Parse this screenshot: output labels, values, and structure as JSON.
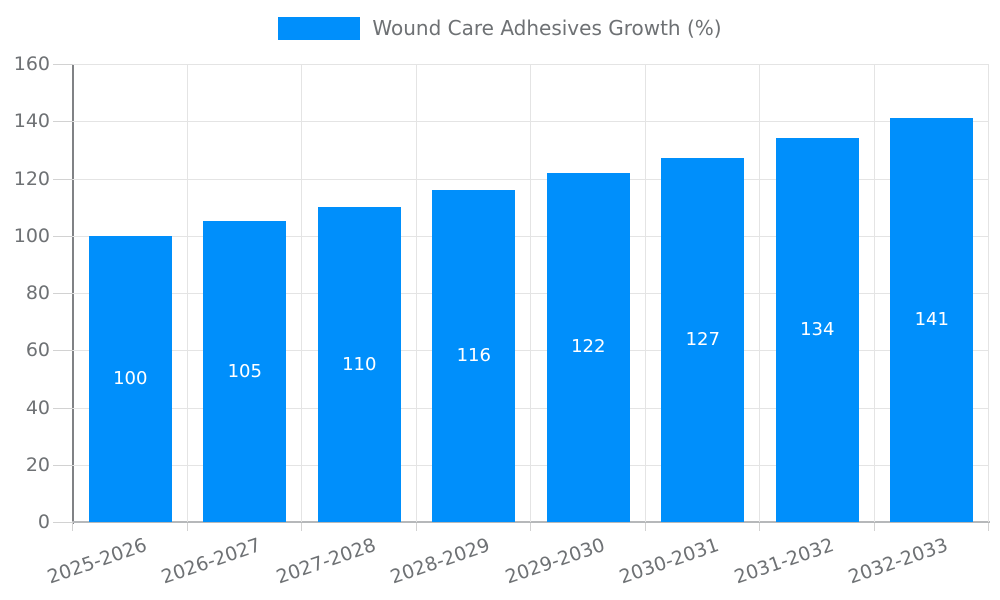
{
  "chart_data": {
    "type": "bar",
    "title": "",
    "legend": {
      "label": "Wound Care Adhesives Growth (%)",
      "position": "top"
    },
    "categories": [
      "2025-2026",
      "2026-2027",
      "2027-2028",
      "2028-2029",
      "2029-2030",
      "2030-2031",
      "2031-2032",
      "2032-2033"
    ],
    "series": [
      {
        "name": "Wound Care Adhesives Growth (%)",
        "values": [
          100,
          105,
          110,
          116,
          122,
          127,
          134,
          141
        ]
      }
    ],
    "value_labels": [
      "100",
      "105",
      "110",
      "116",
      "122",
      "127",
      "134",
      "141"
    ],
    "ylim": [
      0,
      160
    ],
    "ytick_step": 20,
    "ytick_labels": [
      "0",
      "20",
      "40",
      "60",
      "80",
      "100",
      "120",
      "140",
      "160"
    ],
    "grid": true,
    "colors": {
      "bar": "#008FFB",
      "value_label": "#ffffff",
      "axis_label": "#6e7174",
      "legend_label": "#6e7174",
      "gridline": "#e4e4e4",
      "tick": "#d2d2d2",
      "y_axis_line": "#808285",
      "x_axis_line": "#b6b8ba",
      "background": "#ffffff"
    }
  }
}
